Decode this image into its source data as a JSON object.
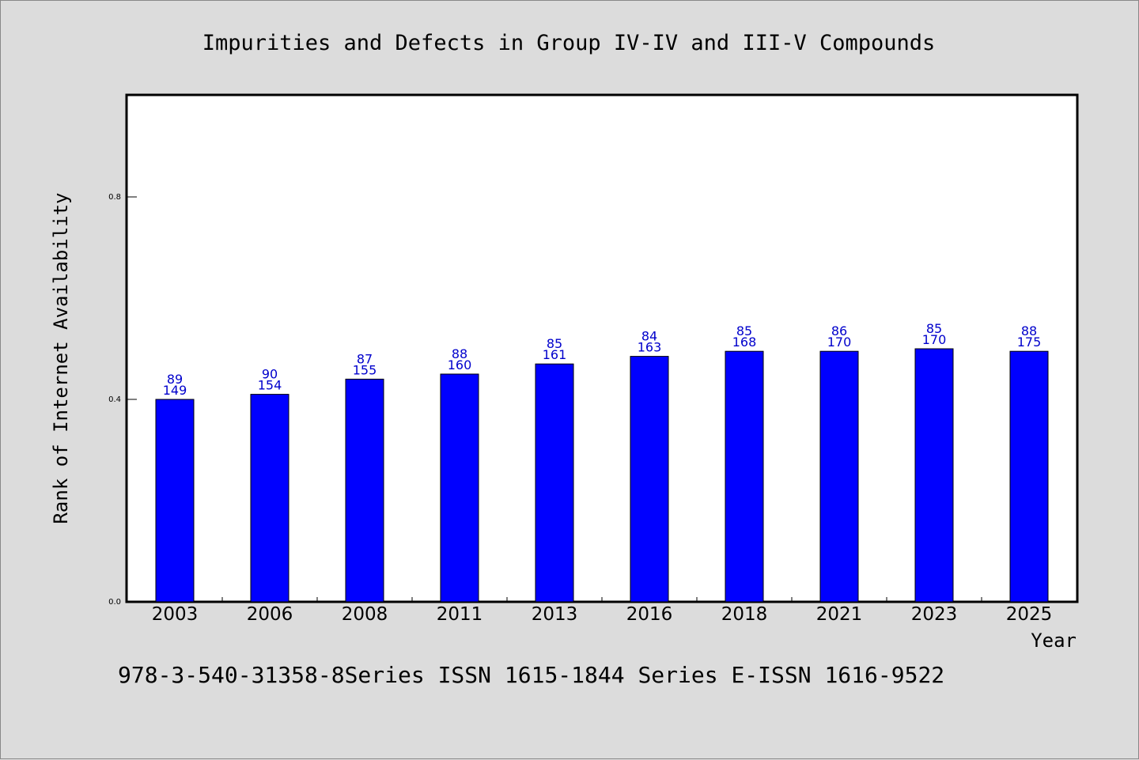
{
  "chart_data": {
    "type": "bar",
    "title": "Impurities and Defects in Group IV-IV and III-V Compounds",
    "xlabel": "Year",
    "ylabel": "Rank of Internet Availability",
    "categories": [
      "2003",
      "2006",
      "2008",
      "2011",
      "2013",
      "2016",
      "2018",
      "2021",
      "2023",
      "2025"
    ],
    "series": [
      {
        "values": [
          0.4,
          0.41,
          0.44,
          0.45,
          0.47,
          0.485,
          0.495,
          0.495,
          0.5,
          0.495
        ]
      }
    ],
    "data_labels": [
      [
        "89",
        "149"
      ],
      [
        "90",
        "154"
      ],
      [
        "87",
        "155"
      ],
      [
        "88",
        "160"
      ],
      [
        "85",
        "161"
      ],
      [
        "84",
        "163"
      ],
      [
        "85",
        "168"
      ],
      [
        "86",
        "170"
      ],
      [
        "85",
        "170"
      ],
      [
        "88",
        "175"
      ]
    ],
    "ylim": [
      0,
      1.0
    ],
    "yticks": [
      0.0,
      0.4,
      0.8
    ],
    "ytick_labels": [
      "0.0",
      "0.4",
      "0.8"
    ],
    "grid": false,
    "footer": "978-3-540-31358-8Series ISSN 1615-1844 Series E-ISSN 1616-9522",
    "colors": {
      "bar": "#0000ff",
      "label": "#0000cc",
      "plot_background": "#ffffff",
      "page_background": "#dcdcdc"
    }
  }
}
